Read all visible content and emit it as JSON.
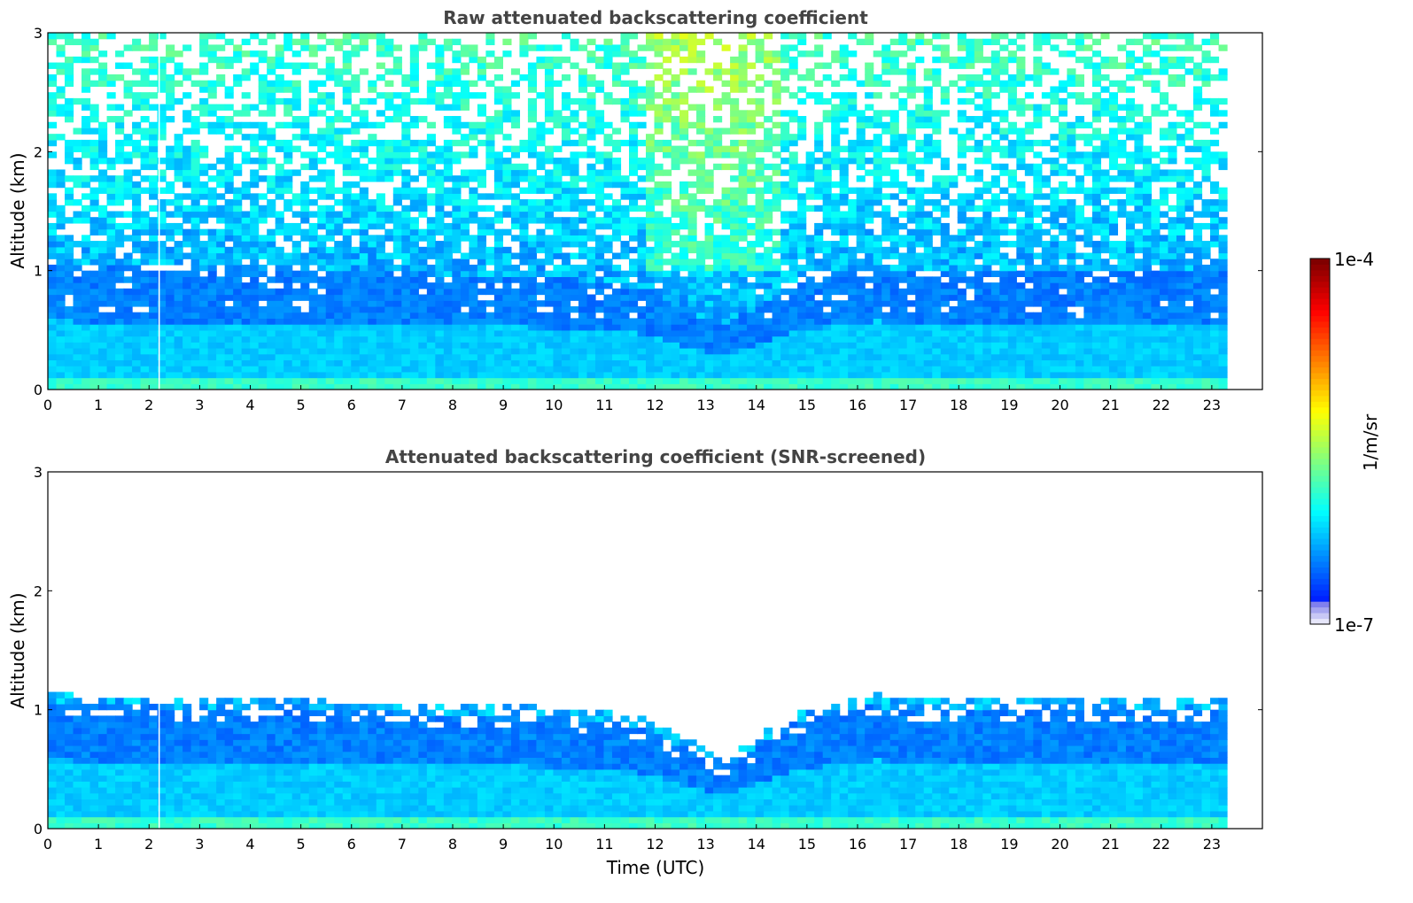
{
  "chart_data": [
    {
      "type": "heatmap",
      "title": "Raw attenuated backscattering coefficient",
      "ylabel": "Altitude (km)",
      "xlabel": "",
      "xlim": [
        0,
        24
      ],
      "ylim": [
        0,
        3
      ],
      "xticks": [
        "0",
        "1",
        "2",
        "3",
        "4",
        "5",
        "6",
        "7",
        "8",
        "9",
        "10",
        "11",
        "12",
        "13",
        "14",
        "15",
        "16",
        "17",
        "18",
        "19",
        "20",
        "21",
        "22",
        "23"
      ],
      "yticks": [
        "0",
        "1",
        "2",
        "3"
      ],
      "data_x_end": 23.3,
      "gap_time": 2.2,
      "screened": false
    },
    {
      "type": "heatmap",
      "title": "Attenuated backscattering coefficient (SNR-screened)",
      "ylabel": "Altitude (km)",
      "xlabel": "Time (UTC)",
      "xlim": [
        0,
        24
      ],
      "ylim": [
        0,
        3
      ],
      "xticks": [
        "0",
        "1",
        "2",
        "3",
        "4",
        "5",
        "6",
        "7",
        "8",
        "9",
        "10",
        "11",
        "12",
        "13",
        "14",
        "15",
        "16",
        "17",
        "18",
        "19",
        "20",
        "21",
        "22",
        "23"
      ],
      "yticks": [
        "0",
        "1",
        "2",
        "3"
      ],
      "data_x_end": 23.3,
      "gap_time": 2.2,
      "screened": true
    }
  ],
  "colorbar": {
    "max_label": "1e-4",
    "min_label": "1e-7",
    "unit": "1/m/sr",
    "scale": "log",
    "colormap": "jet"
  }
}
